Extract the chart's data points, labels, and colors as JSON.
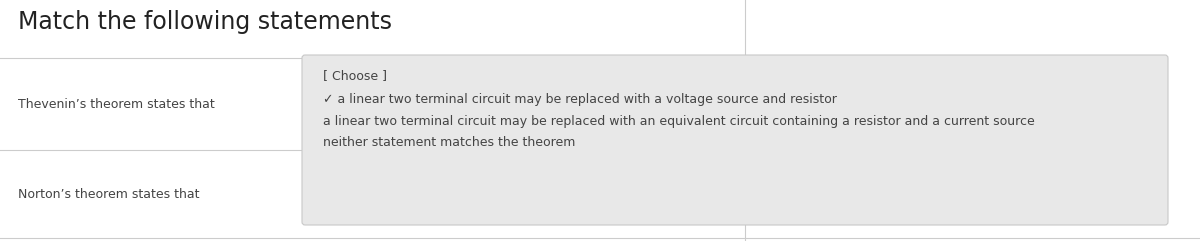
{
  "title": "Match the following statements",
  "bg_color": "#ffffff",
  "row1_label": "Thevenin’s theorem states that",
  "row2_label": "Norton’s theorem states that",
  "dropdown_selected": "a linear two terminal circuit m",
  "dropdown_items": [
    "[ Choose ]",
    "✓ a linear two terminal circuit may be replaced with a voltage source and resistor",
    "a linear two terminal circuit may be replaced with an equivalent circuit containing a resistor and a current source",
    "neither statement matches the theorem"
  ],
  "dropdown_bg": "#e8e8e8",
  "dropdown_border": "#c8c8c8",
  "dropdown2_bg": "#ffffff",
  "dropdown2_border": "#aaaaaa",
  "divider_color": "#cccccc",
  "text_color": "#444444",
  "title_color": "#222222",
  "font_size_title": 17,
  "font_size_body": 9,
  "font_size_dropdown": 9
}
